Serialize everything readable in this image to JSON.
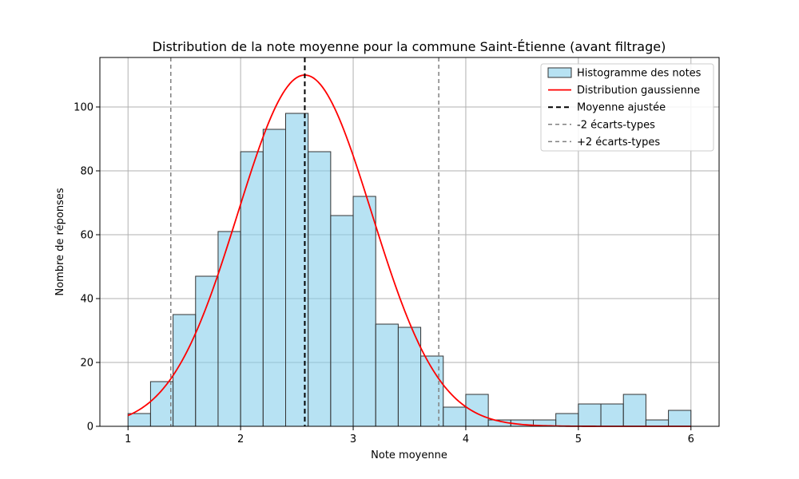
{
  "chart_data": {
    "type": "bar",
    "title": "Distribution de la note moyenne pour la commune Saint-Étienne (avant filtrage)",
    "xlabel": "Note moyenne",
    "ylabel": "Nombre de réponses",
    "xlim": [
      0.75,
      6.25
    ],
    "ylim": [
      0,
      115.5
    ],
    "grid": true,
    "legend_position": "top-right",
    "xticks": [
      1,
      2,
      3,
      4,
      5,
      6
    ],
    "yticks": [
      0,
      20,
      40,
      60,
      80,
      100
    ],
    "histogram": {
      "name": "Histogramme des notes",
      "color": "#87ceeb",
      "bin_edges": [
        1.0,
        1.2,
        1.4,
        1.6,
        1.8,
        2.0,
        2.2,
        2.4,
        2.6,
        2.8,
        3.0,
        3.2,
        3.4,
        3.6,
        3.8,
        4.0,
        4.2,
        4.4,
        4.6,
        4.8,
        5.0,
        5.2,
        5.4,
        5.6,
        5.8,
        6.0
      ],
      "counts": [
        4,
        14,
        35,
        47,
        61,
        86,
        93,
        98,
        86,
        66,
        72,
        32,
        31,
        22,
        6,
        10,
        2,
        2,
        2,
        4,
        7,
        7,
        10,
        2,
        5
      ]
    },
    "gaussian": {
      "name": "Distribution gaussienne",
      "color": "#ff0000",
      "mean": 2.57,
      "sd": 0.595,
      "peak": 110
    },
    "vertical_lines": [
      {
        "name": "Moyenne ajustée",
        "x": 2.57,
        "color": "#000000",
        "style": "dashed"
      },
      {
        "name": "-2 écarts-types",
        "x": 1.38,
        "color": "#808080",
        "style": "dashed"
      },
      {
        "name": "+2 écarts-types",
        "x": 3.76,
        "color": "#808080",
        "style": "dashed"
      }
    ],
    "legend": [
      "Histogramme des notes",
      "Distribution gaussienne",
      "Moyenne ajustée",
      "-2 écarts-types",
      "+2 écarts-types"
    ]
  }
}
